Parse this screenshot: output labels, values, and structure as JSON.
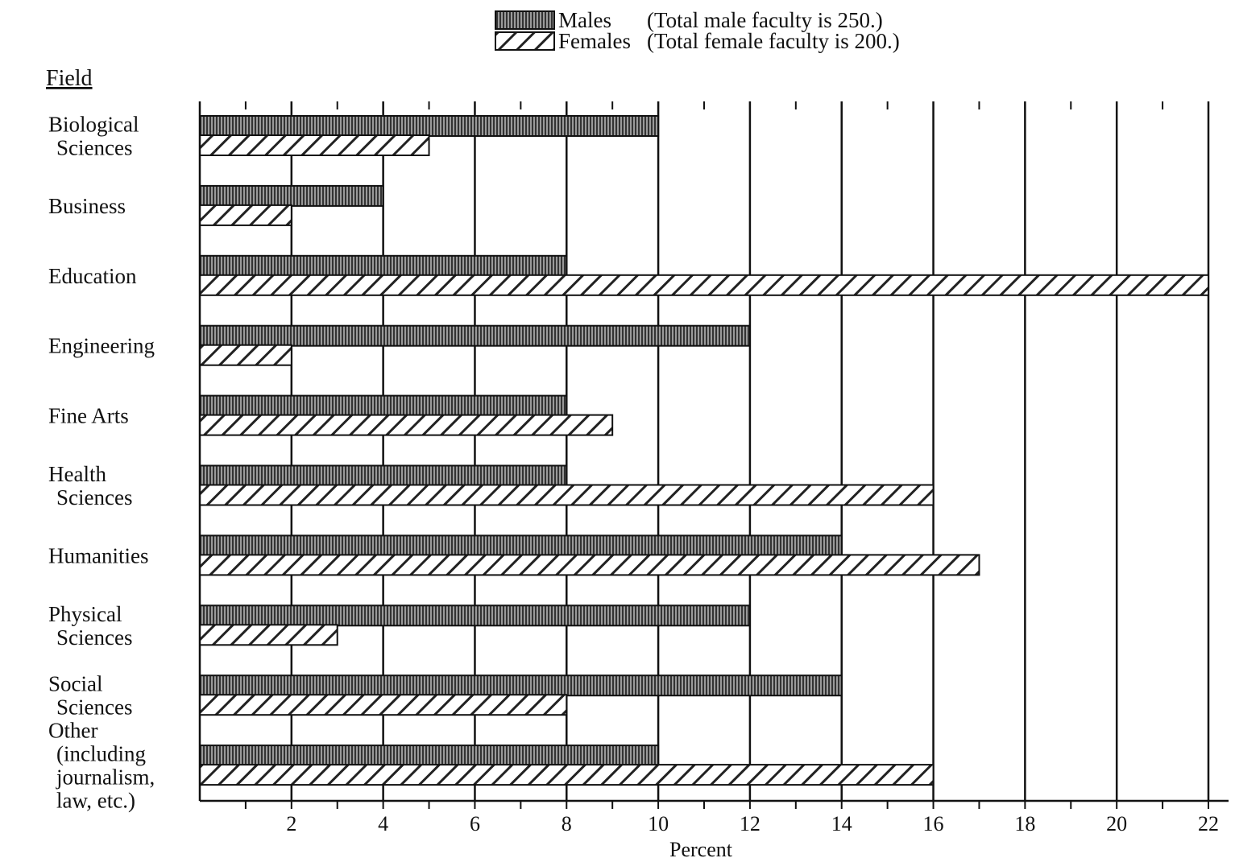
{
  "chart_data": {
    "type": "bar",
    "orientation": "horizontal",
    "title": "",
    "ylabel": "Field",
    "xlabel": "Percent",
    "xlim": [
      0,
      22
    ],
    "xticks": [
      2,
      4,
      6,
      8,
      10,
      12,
      14,
      16,
      18,
      20,
      22
    ],
    "grid": true,
    "legend_position": "top-center",
    "categories": [
      [
        "Biological",
        "Sciences"
      ],
      [
        "Business"
      ],
      [
        "Education"
      ],
      [
        "Engineering"
      ],
      [
        "Fine Arts"
      ],
      [
        "Health",
        "Sciences"
      ],
      [
        "Humanities"
      ],
      [
        "Physical",
        "Sciences"
      ],
      [
        "Social",
        "Sciences"
      ],
      [
        "Other",
        "(including",
        "journalism,",
        "law, etc.)"
      ]
    ],
    "series": [
      {
        "name": "Males",
        "note": "(Total male faculty is 250.)",
        "pattern": "vertical-stripes",
        "values": [
          10,
          4,
          8,
          12,
          8,
          8,
          14,
          12,
          14,
          10
        ]
      },
      {
        "name": "Females",
        "note": "(Total female faculty is 200.)",
        "pattern": "diagonal-hatch",
        "values": [
          5,
          2,
          22,
          2,
          9,
          16,
          17,
          3,
          8,
          16
        ]
      }
    ]
  }
}
